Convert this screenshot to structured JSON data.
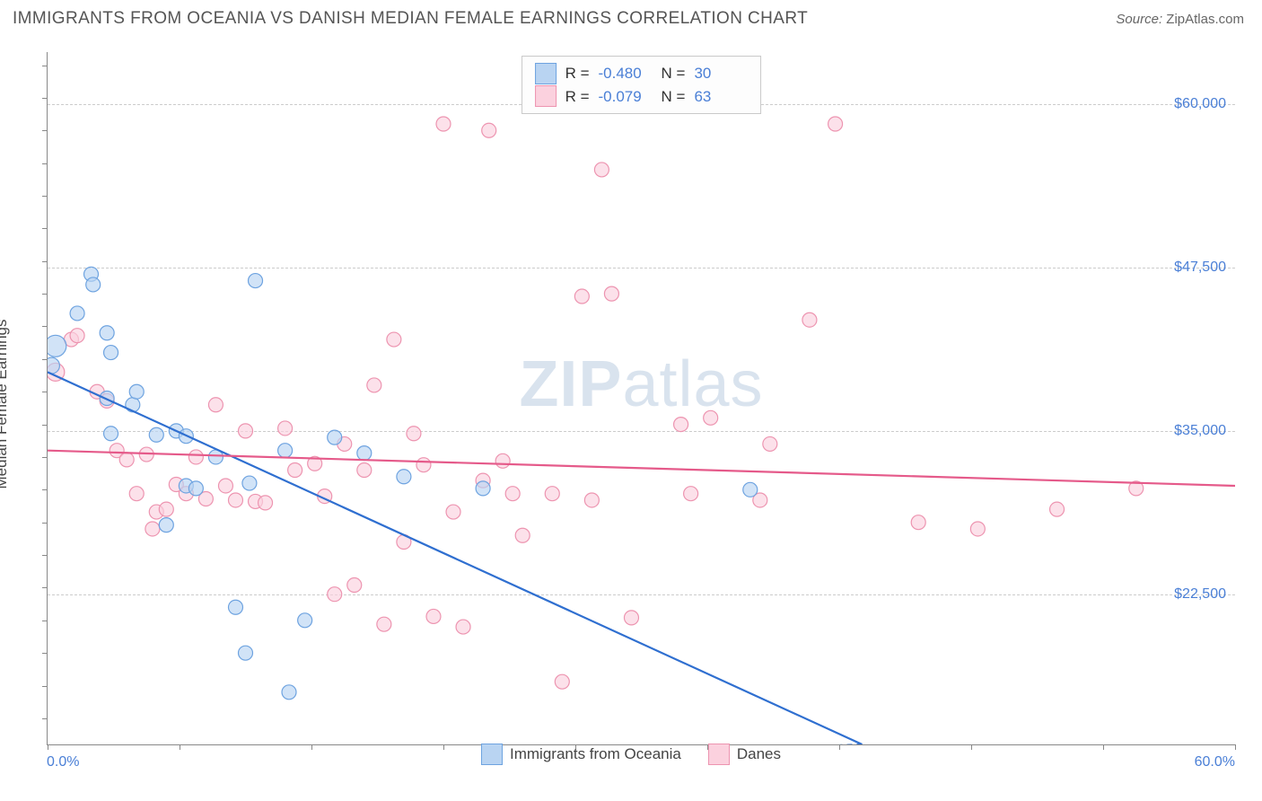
{
  "title": "IMMIGRANTS FROM OCEANIA VS DANISH MEDIAN FEMALE EARNINGS CORRELATION CHART",
  "source_label": "Source:",
  "source_value": "ZipAtlas.com",
  "watermark_zip": "ZIP",
  "watermark_atlas": "atlas",
  "chart": {
    "type": "scatter",
    "ylabel": "Median Female Earnings",
    "x_min_label": "0.0%",
    "x_max_label": "60.0%",
    "x_domain": [
      0,
      60
    ],
    "y_domain": [
      11000,
      64000
    ],
    "y_ticks": [
      22500,
      35000,
      47500,
      60000
    ],
    "y_tick_labels": [
      "$22,500",
      "$35,000",
      "$47,500",
      "$60,000"
    ],
    "x_tick_marks": [
      0,
      6.67,
      13.33,
      20,
      26.67,
      33.33,
      40,
      46.67,
      53.33,
      60
    ],
    "y_tick_marks_minor": [
      13000,
      15500,
      18000,
      20500,
      23000,
      25500,
      28000,
      30500,
      33000,
      35500,
      38000,
      40500,
      43000,
      45500,
      48000,
      50500,
      53000,
      55500,
      58000,
      60500,
      63000
    ],
    "grid_color": "#cccccc",
    "axis_color": "#888888",
    "background_color": "#ffffff",
    "series": {
      "oceania": {
        "label": "Immigrants from Oceania",
        "fill": "#b9d4f2",
        "stroke": "#6ea3e0",
        "r_value": "-0.480",
        "n_value": "30",
        "trend": {
          "x1": 0,
          "y1": 39500,
          "x2": 40,
          "y2": 11800,
          "color": "#2f6fd0",
          "width": 2.2
        },
        "points": [
          [
            0.4,
            41500,
            12
          ],
          [
            0.2,
            40000,
            9
          ],
          [
            2.2,
            47000,
            8
          ],
          [
            2.3,
            46200,
            8
          ],
          [
            3.0,
            42500,
            8
          ],
          [
            3.2,
            41000,
            8
          ],
          [
            3.0,
            37500,
            8
          ],
          [
            4.3,
            37000,
            8
          ],
          [
            3.2,
            34800,
            8
          ],
          [
            5.5,
            34700,
            8
          ],
          [
            6.5,
            35000,
            8
          ],
          [
            7.0,
            34600,
            8
          ],
          [
            10.5,
            46500,
            8
          ],
          [
            6.0,
            27800,
            8
          ],
          [
            7.0,
            30800,
            8
          ],
          [
            7.5,
            30600,
            8
          ],
          [
            8.5,
            33000,
            8
          ],
          [
            9.5,
            21500,
            8
          ],
          [
            10.0,
            18000,
            8
          ],
          [
            10.2,
            31000,
            8
          ],
          [
            12.0,
            33500,
            8
          ],
          [
            13.0,
            20500,
            8
          ],
          [
            12.2,
            15000,
            8
          ],
          [
            14.5,
            34500,
            8
          ],
          [
            16.0,
            33300,
            8
          ],
          [
            18.0,
            31500,
            8
          ],
          [
            22.0,
            30600,
            8
          ],
          [
            35.5,
            30500,
            8
          ],
          [
            4.5,
            38000,
            8
          ],
          [
            1.5,
            44000,
            8
          ]
        ]
      },
      "danes": {
        "label": "Danes",
        "fill": "#fbd1de",
        "stroke": "#ed94b0",
        "r_value": "-0.079",
        "n_value": "63",
        "trend": {
          "x1": 0,
          "y1": 33500,
          "x2": 60,
          "y2": 30800,
          "color": "#e55a8a",
          "width": 2.2
        },
        "points": [
          [
            0.4,
            39500,
            10
          ],
          [
            1.2,
            42000,
            8
          ],
          [
            1.5,
            42300,
            8
          ],
          [
            2.5,
            38000,
            8
          ],
          [
            3.0,
            37300,
            8
          ],
          [
            3.5,
            33500,
            8
          ],
          [
            4.0,
            32800,
            8
          ],
          [
            4.5,
            30200,
            8
          ],
          [
            5.0,
            33200,
            8
          ],
          [
            5.5,
            28800,
            8
          ],
          [
            5.3,
            27500,
            8
          ],
          [
            6.0,
            29000,
            8
          ],
          [
            6.5,
            30900,
            8
          ],
          [
            7.0,
            30200,
            8
          ],
          [
            7.5,
            33000,
            8
          ],
          [
            8.0,
            29800,
            8
          ],
          [
            8.5,
            37000,
            8
          ],
          [
            9.0,
            30800,
            8
          ],
          [
            9.5,
            29700,
            8
          ],
          [
            10.0,
            35000,
            8
          ],
          [
            10.5,
            29600,
            8
          ],
          [
            11.0,
            29500,
            8
          ],
          [
            12.0,
            35200,
            8
          ],
          [
            12.5,
            32000,
            8
          ],
          [
            13.5,
            32500,
            8
          ],
          [
            14.0,
            30000,
            8
          ],
          [
            14.5,
            22500,
            8
          ],
          [
            15.0,
            34000,
            8
          ],
          [
            15.5,
            23200,
            8
          ],
          [
            16.0,
            32000,
            8
          ],
          [
            16.5,
            38500,
            8
          ],
          [
            17.0,
            20200,
            8
          ],
          [
            17.5,
            42000,
            8
          ],
          [
            18.0,
            26500,
            8
          ],
          [
            18.5,
            34800,
            8
          ],
          [
            19.0,
            32400,
            8
          ],
          [
            19.5,
            20800,
            8
          ],
          [
            20.0,
            58500,
            8
          ],
          [
            20.5,
            28800,
            8
          ],
          [
            21.0,
            20000,
            8
          ],
          [
            22.0,
            31200,
            8
          ],
          [
            22.3,
            58000,
            8
          ],
          [
            23.0,
            32700,
            8
          ],
          [
            23.5,
            30200,
            8
          ],
          [
            24.0,
            27000,
            8
          ],
          [
            25.5,
            30200,
            8
          ],
          [
            26.0,
            15800,
            8
          ],
          [
            27.0,
            45300,
            8
          ],
          [
            27.5,
            29700,
            8
          ],
          [
            28.0,
            55000,
            8
          ],
          [
            28.5,
            45500,
            8
          ],
          [
            29.5,
            20700,
            8
          ],
          [
            32.5,
            30200,
            8
          ],
          [
            33.5,
            36000,
            8
          ],
          [
            36.0,
            29700,
            8
          ],
          [
            36.5,
            34000,
            8
          ],
          [
            38.5,
            43500,
            8
          ],
          [
            39.8,
            58500,
            8
          ],
          [
            44.0,
            28000,
            8
          ],
          [
            47.0,
            27500,
            8
          ],
          [
            51.0,
            29000,
            8
          ],
          [
            55.0,
            30600,
            8
          ],
          [
            32.0,
            35500,
            8
          ]
        ]
      }
    }
  }
}
